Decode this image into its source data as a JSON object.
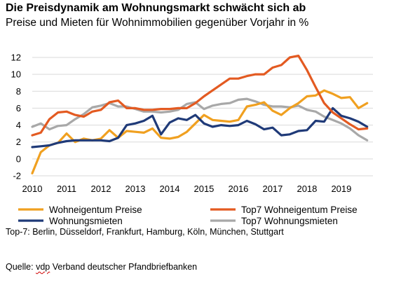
{
  "chart_data": {
    "type": "line",
    "title": "Die Preisdynamik am Wohnungsmarkt schwächt sich ab",
    "subtitle": "Preise und Mieten für Wohnimmobilien gegenüber Vorjahr in %",
    "xlabel": "",
    "ylabel": "",
    "xlim": [
      2010,
      2019.92
    ],
    "ylim": [
      -2,
      12
    ],
    "yticks": [
      -2,
      0,
      2,
      4,
      6,
      8,
      10,
      12
    ],
    "xtick_labels": [
      "2010",
      "2011",
      "2012",
      "2013",
      "2014",
      "2015",
      "2016",
      "2017",
      "2018",
      "2019"
    ],
    "grid": "horizontal",
    "legend_position": "bottom",
    "x": [
      2010,
      2010.25,
      2010.5,
      2010.75,
      2011,
      2011.25,
      2011.5,
      2011.75,
      2012,
      2012.25,
      2012.5,
      2012.75,
      2013,
      2013.25,
      2013.5,
      2013.75,
      2014,
      2014.25,
      2014.5,
      2014.75,
      2015,
      2015.25,
      2015.5,
      2015.75,
      2016,
      2016.25,
      2016.5,
      2016.75,
      2017,
      2017.25,
      2017.5,
      2017.75,
      2018,
      2018.25,
      2018.5,
      2018.75,
      2019,
      2019.25,
      2019.5,
      2019.75
    ],
    "series": [
      {
        "name": "Wohneigentum Preise",
        "color": "#f0a020",
        "values": [
          -1.7,
          0.8,
          1.6,
          1.9,
          3.0,
          2.0,
          2.4,
          2.2,
          2.4,
          3.4,
          2.5,
          3.3,
          3.2,
          3.1,
          3.6,
          2.5,
          2.4,
          2.6,
          3.2,
          4.2,
          5.2,
          4.6,
          4.5,
          4.4,
          4.6,
          6.2,
          6.4,
          6.7,
          5.7,
          5.2,
          6.0,
          6.6,
          7.4,
          7.5,
          8.1,
          7.7,
          7.2,
          7.3,
          6.0,
          6.6
        ]
      },
      {
        "name": "Top7 Wohneigentum Preise",
        "color": "#e35a21",
        "values": [
          2.8,
          3.1,
          4.7,
          5.5,
          5.6,
          5.2,
          5.0,
          5.6,
          5.8,
          6.7,
          6.9,
          6.0,
          6.0,
          5.8,
          5.8,
          5.9,
          5.9,
          6.0,
          6.0,
          6.6,
          7.4,
          8.1,
          8.8,
          9.5,
          9.5,
          9.8,
          10.0,
          10.0,
          10.8,
          11.1,
          12.0,
          12.2,
          10.5,
          8.5,
          6.6,
          5.5,
          4.8,
          4.1,
          3.5,
          3.6
        ]
      },
      {
        "name": "Wohnungsmieten",
        "color": "#1f3a78",
        "values": [
          1.4,
          1.5,
          1.6,
          1.9,
          2.1,
          2.2,
          2.2,
          2.2,
          2.2,
          2.1,
          2.5,
          4.0,
          4.2,
          4.5,
          5.1,
          2.9,
          4.3,
          4.8,
          4.6,
          5.2,
          4.2,
          3.8,
          4.0,
          3.9,
          4.0,
          4.5,
          4.1,
          3.5,
          3.7,
          2.8,
          2.9,
          3.3,
          3.4,
          4.5,
          4.4,
          6.0,
          5.1,
          4.8,
          4.4,
          3.8
        ]
      },
      {
        "name": "Top7 Wohnungsmieten",
        "color": "#a8a8a8",
        "values": [
          3.8,
          4.2,
          3.5,
          3.9,
          4.0,
          4.7,
          5.3,
          6.1,
          6.3,
          6.6,
          6.2,
          6.2,
          5.9,
          5.6,
          5.6,
          5.5,
          5.6,
          5.8,
          6.5,
          6.7,
          5.9,
          6.3,
          6.5,
          6.6,
          7.0,
          7.1,
          6.8,
          6.4,
          6.2,
          6.2,
          6.1,
          6.3,
          5.8,
          5.6,
          5.0,
          4.6,
          4.2,
          3.6,
          2.8,
          2.2
        ]
      }
    ]
  },
  "footnote": "Top-7: Berlin, Düsseldorf, Frankfurt, Hamburg, Köln, München, Stuttgart",
  "source": {
    "prefix": "Quelle: ",
    "name": "vdp",
    "rest": " Verband deutscher Pfandbriefbanken"
  }
}
